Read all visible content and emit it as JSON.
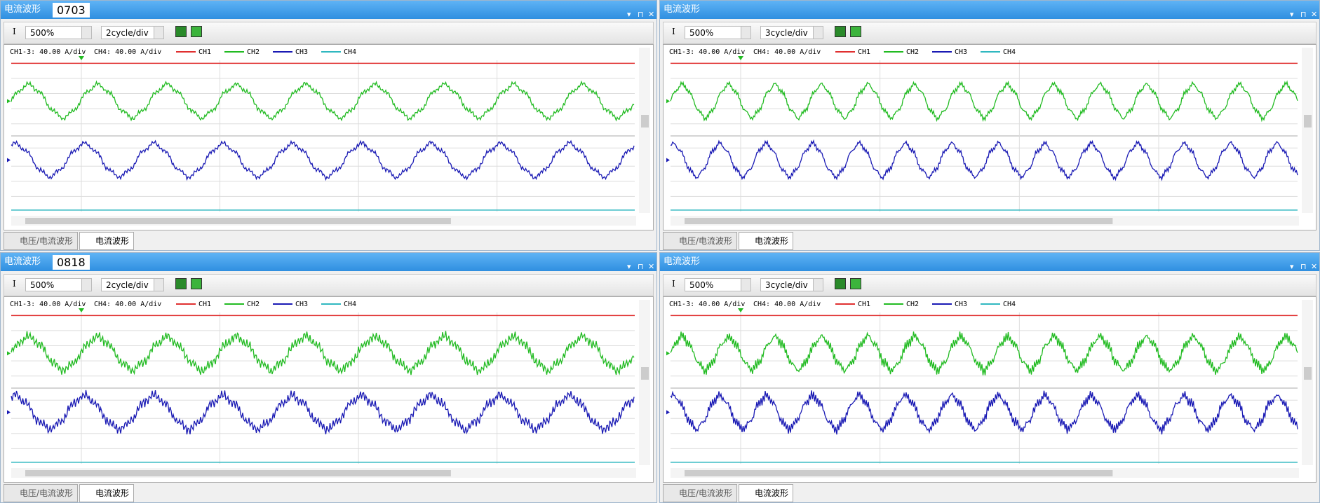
{
  "panels": [
    {
      "title": "电流波形",
      "label": "0703",
      "icon": "I",
      "zoom": "500%",
      "timebase": "2cycle/div",
      "scale_ch13": "CH1-3:  40.00 A/div",
      "scale_ch4": "CH4:  40.00 A/div",
      "channels": [
        "CH1",
        "CH2",
        "CH3",
        "CH4"
      ],
      "tabs": [
        "电压/电流波形",
        "电流波形"
      ]
    },
    {
      "title": "电流波形",
      "icon": "I",
      "zoom": "500%",
      "timebase": "3cycle/div",
      "scale_ch13": "CH1-3:  40.00 A/div",
      "scale_ch4": "CH4:  40.00 A/div",
      "channels": [
        "CH1",
        "CH2",
        "CH3",
        "CH4"
      ],
      "tabs": [
        "电压/电流波形",
        "电流波形"
      ]
    },
    {
      "title": "电流波形",
      "label": "0818",
      "icon": "I",
      "zoom": "500%",
      "timebase": "2cycle/div",
      "scale_ch13": "CH1-3:  40.00 A/div",
      "scale_ch4": "CH4:  40.00 A/div",
      "channels": [
        "CH1",
        "CH2",
        "CH3",
        "CH4"
      ],
      "tabs": [
        "电压/电流波形",
        "电流波形"
      ]
    },
    {
      "title": "电流波形",
      "icon": "I",
      "zoom": "500%",
      "timebase": "3cycle/div",
      "scale_ch13": "CH1-3:  40.00 A/div",
      "scale_ch4": "CH4:  40.00 A/div",
      "channels": [
        "CH1",
        "CH2",
        "CH3",
        "CH4"
      ],
      "tabs": [
        "电压/电流波形",
        "电流波形"
      ]
    }
  ]
}
